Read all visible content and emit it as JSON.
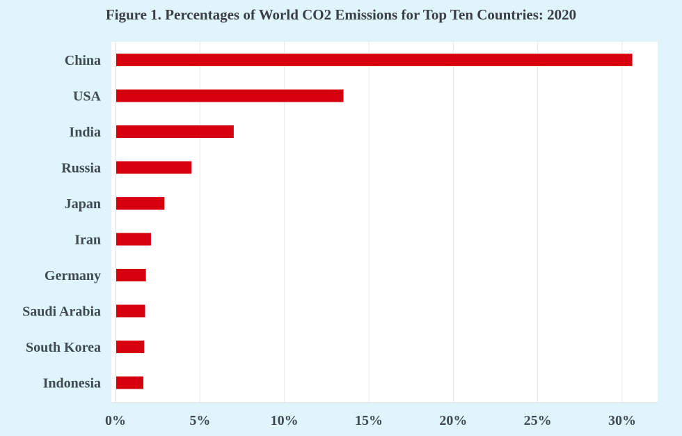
{
  "chart_data": {
    "type": "bar",
    "orientation": "horizontal",
    "title": "Figure 1. Percentages of World CO2 Emissions for Top Ten Countries: 2020",
    "categories": [
      "China",
      "USA",
      "India",
      "Russia",
      "Japan",
      "Iran",
      "Germany",
      "Saudi Arabia",
      "South Korea",
      "Indonesia"
    ],
    "values": [
      30.6,
      13.5,
      7.0,
      4.5,
      2.9,
      2.1,
      1.8,
      1.75,
      1.7,
      1.65
    ],
    "xlabel": "",
    "ylabel": "",
    "xlim": [
      0,
      32
    ],
    "ticks": [
      0,
      5,
      10,
      15,
      20,
      25,
      30
    ],
    "tick_labels": [
      "0%",
      "5%",
      "10%",
      "15%",
      "20%",
      "25%",
      "30%"
    ],
    "grid": true,
    "bar_color": "#d6000f",
    "background_color": "#dff4fb",
    "plot_background_color": "#ffffff",
    "gridline_color": "#e6e9ec"
  }
}
